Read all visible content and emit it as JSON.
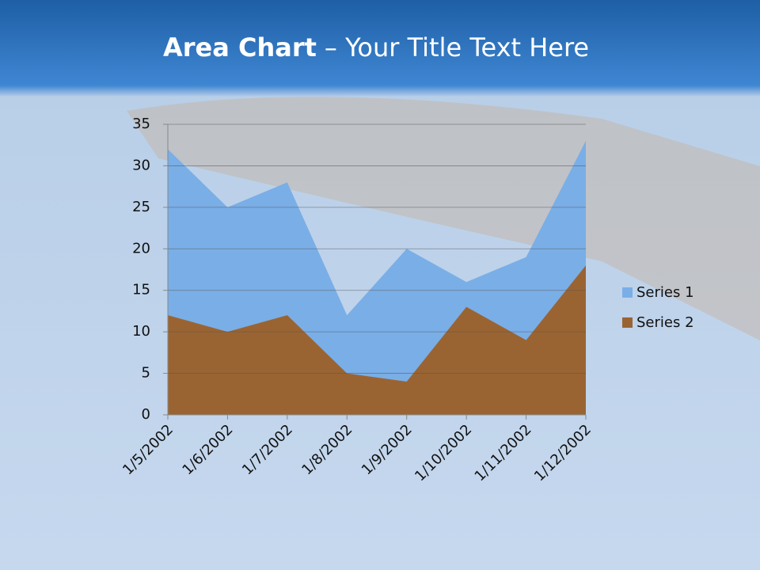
{
  "chart_data": {
    "type": "area",
    "title": {
      "bold": "Area Chart",
      "rest": "– Your Title Text Here"
    },
    "categories": [
      "1/5/2002",
      "1/6/2002",
      "1/7/2002",
      "1/8/2002",
      "1/9/2002",
      "1/10/2002",
      "1/11/2002",
      "1/12/2002"
    ],
    "series": [
      {
        "name": "Series 1",
        "color": "#7aaee6",
        "values": [
          32,
          25,
          28,
          12,
          20,
          16,
          19,
          33
        ]
      },
      {
        "name": "Series 2",
        "color": "#9a6432",
        "values": [
          12,
          10,
          12,
          5,
          4,
          13,
          9,
          18
        ]
      }
    ],
    "ylim": [
      0,
      35
    ],
    "yticks": [
      0,
      5,
      10,
      15,
      20,
      25,
      30,
      35
    ],
    "grid": true,
    "legend": "right"
  }
}
